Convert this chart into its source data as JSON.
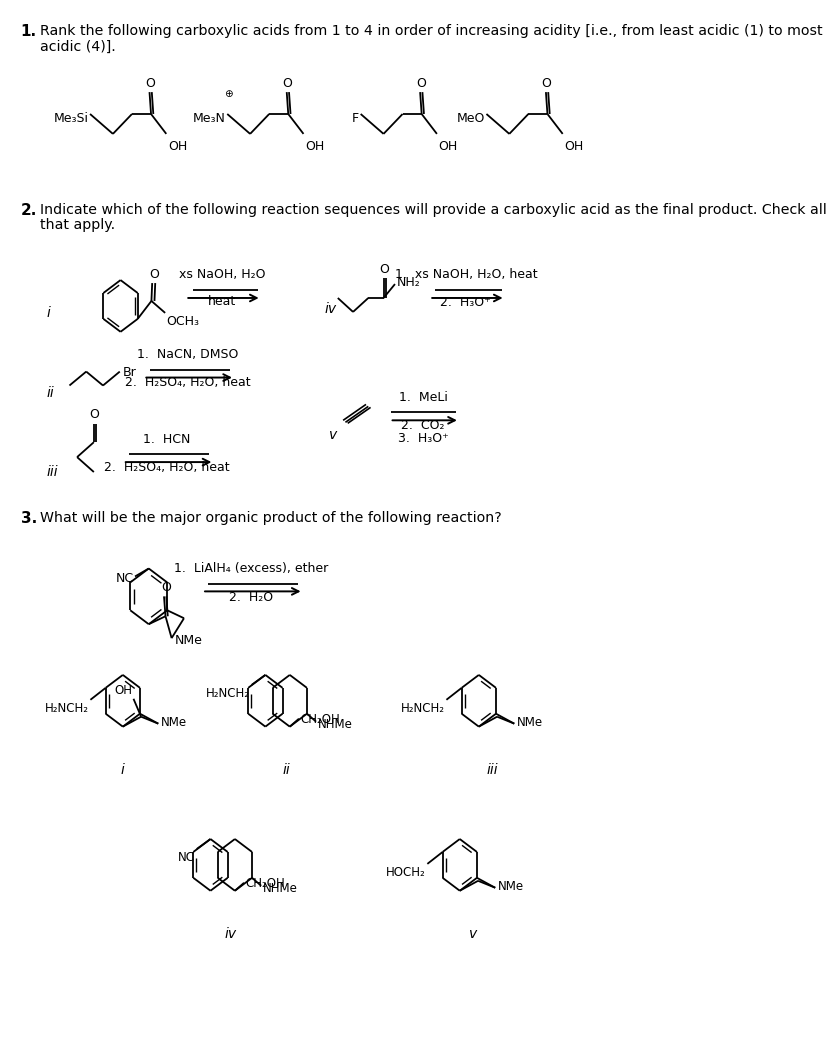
{
  "bg": "#ffffff",
  "figsize": [
    8.13,
    10.24
  ],
  "dpi": 100,
  "q1_num": "1.",
  "q1_line1": "Rank the following carboxylic acids from 1 to 4 in order of increasing acidity [i.e., from least acidic (1) to most",
  "q1_line2": "acidic (4)].",
  "q2_num": "2.",
  "q2_line1": "Indicate which of the following reaction sequences will provide a carboxylic acid as the final product. Check all",
  "q2_line2": "that apply.",
  "q3_num": "3.",
  "q3_line1": "What will be the major organic product of the following reaction?"
}
